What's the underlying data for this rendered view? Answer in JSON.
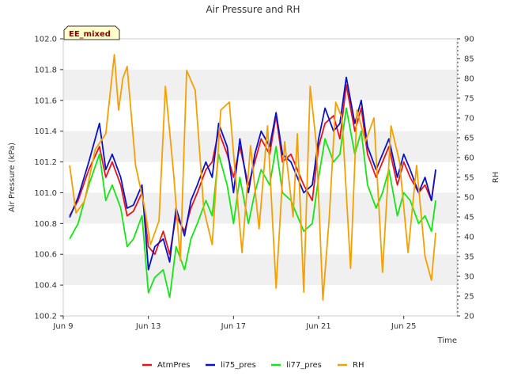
{
  "chart_data": {
    "type": "line",
    "title": "Air Pressure and RH",
    "badge": "EE_mixed",
    "xlabel": "Time",
    "ylabel": "Air Pressure (kPa)",
    "ylabel_right": "RH",
    "x_ticks": [
      "Jun 9",
      "Jun 13",
      "Jun 17",
      "Jun 21",
      "Jun 25"
    ],
    "x_tick_days": [
      9,
      13,
      17,
      21,
      25
    ],
    "xlim": [
      9,
      27.5
    ],
    "ylim": [
      100.2,
      102.0
    ],
    "y_ticks": [
      "100.2",
      "100.4",
      "100.6",
      "100.8",
      "101.0",
      "101.2",
      "101.4",
      "101.6",
      "101.8",
      "102.0"
    ],
    "y2lim": [
      20,
      90
    ],
    "y2_ticks": [
      "20",
      "25",
      "30",
      "35",
      "40",
      "45",
      "50",
      "55",
      "60",
      "65",
      "70",
      "75",
      "80",
      "85",
      "90"
    ],
    "grid": "horizontal bands",
    "legend_position": "bottom-center",
    "series": [
      {
        "name": "AtmPres",
        "axis": "left",
        "color": "#e8141b",
        "x": [
          9.3,
          9.7,
          10.2,
          10.7,
          11.0,
          11.3,
          11.7,
          12.0,
          12.3,
          12.7,
          13.0,
          13.3,
          13.7,
          14.0,
          14.3,
          14.7,
          15.0,
          15.3,
          15.7,
          16.0,
          16.3,
          16.7,
          17.0,
          17.3,
          17.7,
          18.0,
          18.3,
          18.7,
          19.0,
          19.3,
          19.7,
          20.0,
          20.3,
          20.7,
          21.0,
          21.3,
          21.7,
          22.0,
          22.3,
          22.7,
          23.0,
          23.3,
          23.7,
          24.0,
          24.3,
          24.7,
          25.0,
          25.3,
          25.7,
          26.0,
          26.3,
          26.5
        ],
        "values": [
          100.85,
          100.95,
          101.15,
          101.3,
          101.1,
          101.2,
          101.05,
          100.85,
          100.88,
          101.0,
          100.65,
          100.6,
          100.75,
          100.6,
          100.85,
          100.75,
          100.9,
          101.0,
          101.15,
          101.2,
          101.4,
          101.25,
          101.1,
          101.3,
          101.05,
          101.2,
          101.35,
          101.25,
          101.5,
          101.2,
          101.25,
          101.15,
          101.05,
          100.95,
          101.3,
          101.45,
          101.5,
          101.35,
          101.7,
          101.4,
          101.55,
          101.25,
          101.1,
          101.2,
          101.3,
          101.05,
          101.2,
          101.1,
          101.0,
          101.05,
          100.95,
          101.15
        ]
      },
      {
        "name": "li75_pres",
        "axis": "left",
        "color": "#0a12c8",
        "x": [
          9.3,
          9.7,
          10.2,
          10.7,
          11.0,
          11.3,
          11.7,
          12.0,
          12.3,
          12.7,
          13.0,
          13.3,
          13.7,
          14.0,
          14.3,
          14.7,
          15.0,
          15.3,
          15.7,
          16.0,
          16.3,
          16.7,
          17.0,
          17.3,
          17.7,
          18.0,
          18.3,
          18.7,
          19.0,
          19.3,
          19.7,
          20.0,
          20.3,
          20.7,
          21.0,
          21.3,
          21.7,
          22.0,
          22.3,
          22.7,
          23.0,
          23.3,
          23.7,
          24.0,
          24.3,
          24.7,
          25.0,
          25.3,
          25.7,
          26.0,
          26.3,
          26.5
        ],
        "values": [
          100.84,
          100.97,
          101.2,
          101.45,
          101.15,
          101.25,
          101.1,
          100.9,
          100.92,
          101.05,
          100.5,
          100.65,
          100.7,
          100.55,
          100.9,
          100.72,
          100.95,
          101.05,
          101.2,
          101.1,
          101.45,
          101.3,
          101.0,
          101.35,
          101.0,
          101.25,
          101.4,
          101.3,
          101.52,
          101.25,
          101.2,
          101.1,
          101.0,
          101.05,
          101.35,
          101.55,
          101.4,
          101.45,
          101.75,
          101.45,
          101.6,
          101.3,
          101.15,
          101.25,
          101.35,
          101.1,
          101.25,
          101.15,
          101.0,
          101.1,
          100.95,
          101.15
        ]
      },
      {
        "name": "li77_pres",
        "axis": "left",
        "color": "#14e614",
        "x": [
          9.3,
          9.7,
          10.2,
          10.7,
          11.0,
          11.3,
          11.7,
          12.0,
          12.3,
          12.7,
          13.0,
          13.3,
          13.7,
          14.0,
          14.3,
          14.7,
          15.0,
          15.3,
          15.7,
          16.0,
          16.3,
          16.7,
          17.0,
          17.3,
          17.7,
          18.0,
          18.3,
          18.7,
          19.0,
          19.3,
          19.7,
          20.0,
          20.3,
          20.7,
          21.0,
          21.3,
          21.7,
          22.0,
          22.3,
          22.7,
          23.0,
          23.3,
          23.7,
          24.0,
          24.3,
          24.7,
          25.0,
          25.3,
          25.7,
          26.0,
          26.3,
          26.5
        ],
        "values": [
          100.7,
          100.8,
          101.05,
          101.25,
          100.95,
          101.05,
          100.9,
          100.65,
          100.7,
          100.85,
          100.35,
          100.45,
          100.5,
          100.32,
          100.65,
          100.5,
          100.7,
          100.8,
          100.95,
          100.85,
          101.25,
          101.05,
          100.8,
          101.1,
          100.8,
          101.0,
          101.15,
          101.05,
          101.3,
          101.0,
          100.95,
          100.85,
          100.75,
          100.8,
          101.1,
          101.35,
          101.2,
          101.25,
          101.55,
          101.25,
          101.4,
          101.05,
          100.9,
          101.0,
          101.15,
          100.85,
          101.0,
          100.95,
          100.8,
          100.85,
          100.75,
          100.95
        ]
      },
      {
        "name": "RH",
        "axis": "right",
        "color": "#f5a000",
        "x": [
          9.3,
          9.6,
          10.0,
          10.5,
          11.0,
          11.4,
          11.6,
          11.8,
          12.0,
          12.4,
          12.8,
          13.1,
          13.5,
          13.8,
          14.2,
          14.5,
          14.8,
          15.2,
          15.6,
          16.0,
          16.4,
          16.8,
          17.0,
          17.4,
          17.8,
          18.2,
          18.6,
          19.0,
          19.4,
          19.8,
          20.0,
          20.3,
          20.6,
          20.9,
          21.2,
          21.5,
          21.8,
          22.1,
          22.5,
          22.8,
          23.2,
          23.6,
          24.0,
          24.4,
          24.8,
          25.2,
          25.6,
          26.0,
          26.3,
          26.5
        ],
        "values": [
          58,
          46,
          49,
          62,
          66,
          86,
          72,
          80,
          83,
          58,
          48,
          38,
          44,
          78,
          55,
          34,
          82,
          77,
          47,
          38,
          72,
          74,
          61,
          36,
          63,
          42,
          68,
          27,
          64,
          45,
          66,
          26,
          78,
          63,
          24,
          45,
          74,
          70,
          32,
          72,
          64,
          70,
          31,
          68,
          59,
          36,
          58,
          35,
          29,
          41
        ]
      }
    ]
  },
  "legend": {
    "items": [
      "AtmPres",
      "li75_pres",
      "li77_pres",
      "RH"
    ]
  }
}
